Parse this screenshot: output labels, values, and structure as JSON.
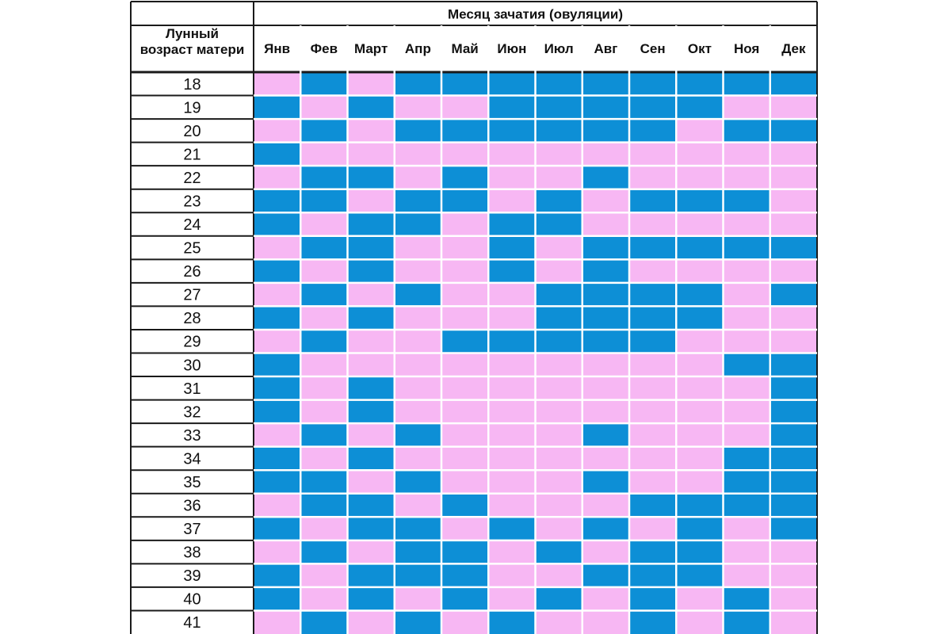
{
  "header": {
    "title": "Месяц зачатия (овуляции)",
    "row_label": "Лунный возраст матери"
  },
  "months": [
    "Янв",
    "Фев",
    "Март",
    "Апр",
    "Май",
    "Июн",
    "Июл",
    "Авг",
    "Сен",
    "Окт",
    "Ноя",
    "Дек"
  ],
  "colors": {
    "b": "#0d8fd6",
    "g": "#f7b7f3",
    "border": "#1a1a1a"
  },
  "legend": {
    "b": "blue",
    "g": "pink"
  },
  "rows": [
    {
      "age": "18",
      "cells": [
        "g",
        "b",
        "g",
        "b",
        "b",
        "b",
        "b",
        "b",
        "b",
        "b",
        "b",
        "b"
      ]
    },
    {
      "age": "19",
      "cells": [
        "b",
        "g",
        "b",
        "g",
        "g",
        "b",
        "b",
        "b",
        "b",
        "b",
        "g",
        "g"
      ]
    },
    {
      "age": "20",
      "cells": [
        "g",
        "b",
        "g",
        "b",
        "b",
        "b",
        "b",
        "b",
        "b",
        "g",
        "b",
        "b"
      ]
    },
    {
      "age": "21",
      "cells": [
        "b",
        "g",
        "g",
        "g",
        "g",
        "g",
        "g",
        "g",
        "g",
        "g",
        "g",
        "g"
      ]
    },
    {
      "age": "22",
      "cells": [
        "g",
        "b",
        "b",
        "g",
        "b",
        "g",
        "g",
        "b",
        "g",
        "g",
        "g",
        "g"
      ]
    },
    {
      "age": "23",
      "cells": [
        "b",
        "b",
        "g",
        "b",
        "b",
        "g",
        "b",
        "g",
        "b",
        "b",
        "b",
        "g"
      ]
    },
    {
      "age": "24",
      "cells": [
        "b",
        "g",
        "b",
        "b",
        "g",
        "b",
        "b",
        "g",
        "g",
        "g",
        "g",
        "g"
      ]
    },
    {
      "age": "25",
      "cells": [
        "g",
        "b",
        "b",
        "g",
        "g",
        "b",
        "g",
        "b",
        "b",
        "b",
        "b",
        "b"
      ]
    },
    {
      "age": "26",
      "cells": [
        "b",
        "g",
        "b",
        "g",
        "g",
        "b",
        "g",
        "b",
        "g",
        "g",
        "g",
        "g"
      ]
    },
    {
      "age": "27",
      "cells": [
        "g",
        "b",
        "g",
        "b",
        "g",
        "g",
        "b",
        "b",
        "b",
        "b",
        "g",
        "b"
      ]
    },
    {
      "age": "28",
      "cells": [
        "b",
        "g",
        "b",
        "g",
        "g",
        "g",
        "b",
        "b",
        "b",
        "b",
        "g",
        "g"
      ]
    },
    {
      "age": "29",
      "cells": [
        "g",
        "b",
        "g",
        "g",
        "b",
        "b",
        "b",
        "b",
        "b",
        "g",
        "g",
        "g"
      ]
    },
    {
      "age": "30",
      "cells": [
        "b",
        "g",
        "g",
        "g",
        "g",
        "g",
        "g",
        "g",
        "g",
        "g",
        "b",
        "b"
      ]
    },
    {
      "age": "31",
      "cells": [
        "b",
        "g",
        "b",
        "g",
        "g",
        "g",
        "g",
        "g",
        "g",
        "g",
        "g",
        "b"
      ]
    },
    {
      "age": "32",
      "cells": [
        "b",
        "g",
        "b",
        "g",
        "g",
        "g",
        "g",
        "g",
        "g",
        "g",
        "g",
        "b"
      ]
    },
    {
      "age": "33",
      "cells": [
        "g",
        "b",
        "g",
        "b",
        "g",
        "g",
        "g",
        "b",
        "g",
        "g",
        "g",
        "b"
      ]
    },
    {
      "age": "34",
      "cells": [
        "b",
        "g",
        "b",
        "g",
        "g",
        "g",
        "g",
        "g",
        "g",
        "g",
        "b",
        "b"
      ]
    },
    {
      "age": "35",
      "cells": [
        "b",
        "b",
        "g",
        "b",
        "g",
        "g",
        "g",
        "b",
        "g",
        "g",
        "b",
        "b"
      ]
    },
    {
      "age": "36",
      "cells": [
        "g",
        "b",
        "b",
        "g",
        "b",
        "g",
        "g",
        "g",
        "b",
        "b",
        "b",
        "b"
      ]
    },
    {
      "age": "37",
      "cells": [
        "b",
        "g",
        "b",
        "b",
        "g",
        "b",
        "g",
        "b",
        "g",
        "b",
        "g",
        "b"
      ]
    },
    {
      "age": "38",
      "cells": [
        "g",
        "b",
        "g",
        "b",
        "b",
        "g",
        "b",
        "g",
        "b",
        "b",
        "g",
        "g"
      ]
    },
    {
      "age": "39",
      "cells": [
        "b",
        "g",
        "b",
        "b",
        "b",
        "g",
        "g",
        "b",
        "b",
        "b",
        "g",
        "g"
      ]
    },
    {
      "age": "40",
      "cells": [
        "b",
        "g",
        "b",
        "g",
        "b",
        "g",
        "b",
        "g",
        "b",
        "g",
        "b",
        "g"
      ]
    },
    {
      "age": "41",
      "cells": [
        "g",
        "b",
        "g",
        "b",
        "g",
        "b",
        "g",
        "g",
        "b",
        "g",
        "b",
        "g"
      ]
    }
  ]
}
